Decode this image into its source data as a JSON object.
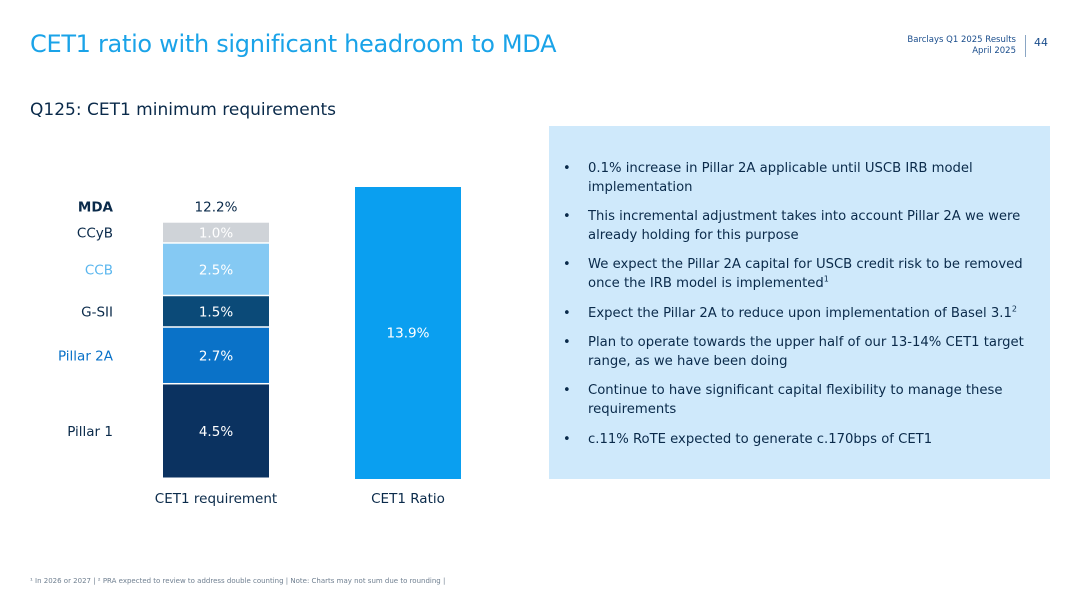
{
  "header": {
    "title": "CET1 ratio with significant headroom to MDA",
    "report": "Barclays Q1 2025 Results",
    "date": "April 2025",
    "page": "44"
  },
  "subtitle": "Q125: CET1 minimum requirements",
  "colors": {
    "pillar1": "#0b3260",
    "pillar2a": "#0a72c8",
    "gsii": "#0b4a78",
    "ccb": "#85c9f3",
    "ccyb": "#cfd3d8",
    "ratio": "#0a9ff0",
    "accent": "#1aa3e8"
  },
  "chart_data": {
    "type": "bar",
    "stacked": true,
    "categories": [
      "CET1 requirement",
      "CET1 Ratio"
    ],
    "series": [
      {
        "name": "Pillar 1",
        "values": [
          4.5,
          null
        ],
        "labels": [
          "4.5%",
          ""
        ]
      },
      {
        "name": "Pillar 2A",
        "values": [
          2.7,
          null
        ],
        "labels": [
          "2.7%",
          ""
        ]
      },
      {
        "name": "G-SII",
        "values": [
          1.5,
          null
        ],
        "labels": [
          "1.5%",
          ""
        ]
      },
      {
        "name": "CCB",
        "values": [
          2.5,
          null
        ],
        "labels": [
          "2.5%",
          ""
        ]
      },
      {
        "name": "CCyB",
        "values": [
          1.0,
          null
        ],
        "labels": [
          "1.0%",
          ""
        ]
      },
      {
        "name": "CET1 Ratio",
        "values": [
          null,
          13.9
        ],
        "labels": [
          "",
          "13.9%"
        ]
      }
    ],
    "mda": {
      "label": "MDA",
      "value": 12.2,
      "value_label": "12.2%"
    },
    "row_labels": [
      "Pillar 1",
      "Pillar 2A",
      "G-SII",
      "CCB",
      "CCyB"
    ],
    "ylim": [
      0,
      13.9
    ]
  },
  "bullets": [
    {
      "text": "0.1% increase in Pillar 2A applicable until USCB IRB model implementation",
      "sup": ""
    },
    {
      "text": "This incremental adjustment takes into account Pillar 2A we were already holding for this purpose",
      "sup": ""
    },
    {
      "text": "We expect the Pillar 2A capital for USCB credit risk to be removed once the IRB model is implemented",
      "sup": "1"
    },
    {
      "text": "Expect the Pillar 2A to reduce upon implementation of Basel 3.1",
      "sup": "2"
    },
    {
      "text": "Plan to operate towards the upper half of our 13-14% CET1 target range, as we have been doing",
      "sup": ""
    },
    {
      "text": "Continue to have significant capital flexibility to manage these requirements",
      "sup": ""
    },
    {
      "text": "c.11% RoTE expected to generate c.170bps of CET1",
      "sup": ""
    }
  ],
  "footnote": "¹ In 2026 or 2027 | ² PRA expected to review to address double counting | Note: Charts may not sum due to rounding |"
}
